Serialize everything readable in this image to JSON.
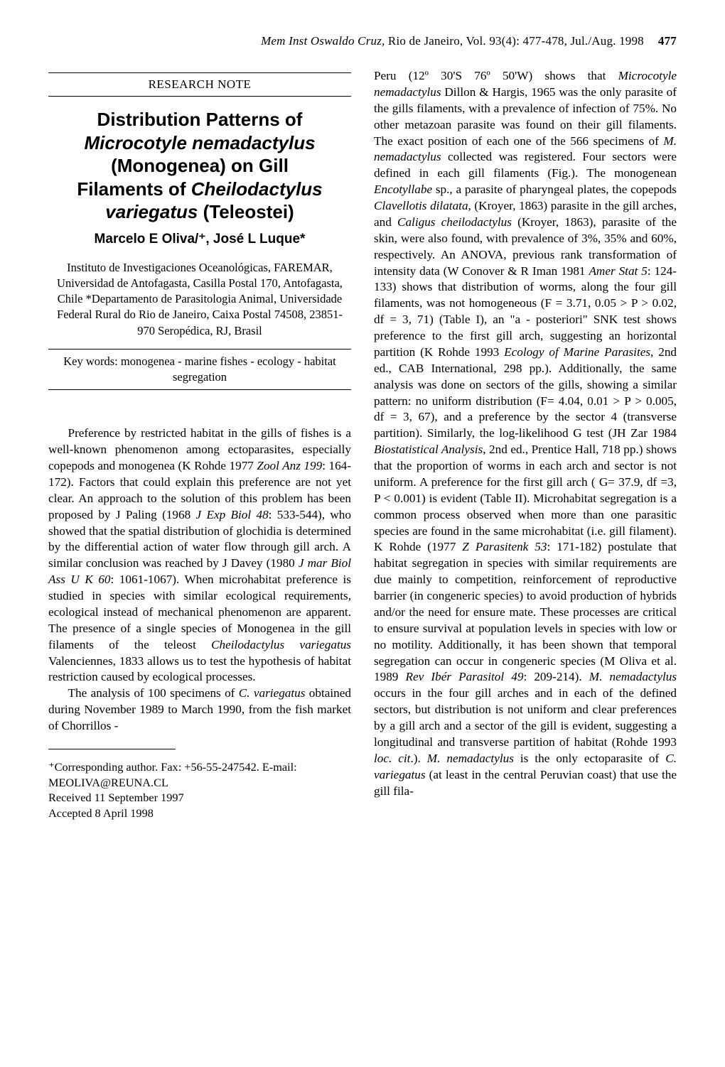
{
  "running_head": {
    "journal_ital": "Mem Inst Oswaldo Cruz,",
    "rest": " Rio de Janeiro, Vol. 93(4): 477-478, Jul./Aug. 1998",
    "pagenum": "477"
  },
  "section_label": "RESEARCH NOTE",
  "title": {
    "l1": "Distribution Patterns of",
    "l2_ital": "Microcotyle nemadactylus",
    "l3": "(Monogenea)  on Gill",
    "l4a": "Filaments of ",
    "l4b_ital": "Cheilodactylus",
    "l5_ital": "variegatus",
    "l5b": " (Teleostei)"
  },
  "authors": "Marcelo E Oliva/⁺, José L Luque*",
  "affil": "Instituto de Investigaciones Oceanológicas, FAREMAR, Universidad de Antofagasta, Casilla Postal 170, Antofagasta, Chile  *Departamento de Parasitologia Animal, Universidade Federal Rural do Rio de Janeiro, Caixa Postal 74508, 23851-970 Seropédica, RJ, Brasil",
  "keywords": "Key words: monogenea - marine fishes - ecology - habitat segregation",
  "body_left_p1": "Preference by restricted habitat in the gills of fishes is a well-known phenomenon among ectoparasites, especially copepods and monogenea (K Rohde 1977 Zool Anz 199: 164-172). Factors that could explain this preference are not yet clear. An approach to the solution of this problem has been proposed by J Paling (1968 J Exp Biol 48: 533-544), who showed that the spatial distribution of glochidia is determined by the differential action of water flow through gill arch. A similar conclusion was reached by J Davey (1980 J mar Biol Ass U K 60: 1061-1067). When microhabitat preference is studied in species with similar ecological requirements, ecological instead of mechanical phenomenon are apparent. The presence of a single species of Monogenea in the gill filaments of the teleost Cheilodactylus variegatus Valenciennes, 1833 allows us to test the hypothesis of habitat restriction caused by ecological processes.",
  "body_left_p2": "The analysis of 100 specimens of C. variegatus  obtained during November 1989 to March  1990, from the fish market of Chorrillos -",
  "footnotes": {
    "l1": "⁺Corresponding author. Fax: +56-55-247542. E-mail: MEOLIVA@REUNA.CL",
    "l2": "Received 11 September 1997",
    "l3": "Accepted 8 April 1998"
  },
  "body_right": "Peru (12º 30'S 76º 50'W) shows that Microcotyle nemadactylus Dillon & Hargis, 1965 was the only parasite of the gills filaments, with a prevalence of infection of 75%. No other metazoan parasite was found on their gill filaments. The exact position of each one of the 566 specimens of M. nemadactylus collected was registered. Four sectors were defined in each gill filaments (Fig.). The monogenean Encotyllabe sp., a parasite of pharyngeal plates, the copepods Clavellotis dilatata, (Kroyer, 1863) parasite in the gill arches, and Caligus cheilodactylus (Kroyer, 1863), parasite of the skin, were also found, with prevalence of 3%, 35% and 60%, respectively. An ANOVA, previous rank transformation of intensity data (W Conover & R Iman 1981 Amer Stat 5: 124-133) shows that distribution of worms, along the four gill filaments, was not homogeneous (F = 3.71, 0.05 > P > 0.02, df = 3, 71) (Table I), an \"a - posteriori\" SNK test shows preference to the first gill arch, suggesting an horizontal partition (K Rohde 1993 Ecology of Marine Parasites, 2nd ed., CAB International, 298 pp.). Additionally, the same analysis was done on sectors of the gills, showing a  similar pattern: no uniform distribution (F= 4.04, 0.01 > P > 0.005, df = 3, 67), and a preference by the sector 4 (transverse partition). Similarly, the log-likelihood G test (JH Zar 1984 Biostatistical Analysis, 2nd ed., Prentice Hall, 718 pp.) shows that the proportion of worms in each arch and sector is not uniform. A preference for the first gill arch ( G= 37.9, df =3, P < 0.001) is evident (Table II). Microhabitat segregation is a common process observed when more than one parasitic species are found in the same microhabitat (i.e. gill filament). K Rohde (1977 Z Parasitenk 53: 171-182) postulate that habitat segregation in species with similar requirements are due mainly to competition, reinforcement of reproductive barrier (in congeneric species) to avoid production of hybrids and/or the need for ensure mate. These processes are critical to ensure survival at population levels in species with low or no motility. Additionally, it has been shown that temporal segregation can occur in congeneric species (M Oliva et al. 1989 Rev Ibér Parasitol 49: 209-214). M. nemadactylus occurs in the four gill arches and in each of the defined sectors, but distribution is not uniform and clear preferences by a gill arch and a sector of the gill is evident, suggesting a longitudinal and transverse partition of habitat (Rohde 1993 loc. cit.). M. nemadactylus is the only ectoparasite of C. variegatus (at least in the central Peruvian coast) that use the gill fila-"
}
